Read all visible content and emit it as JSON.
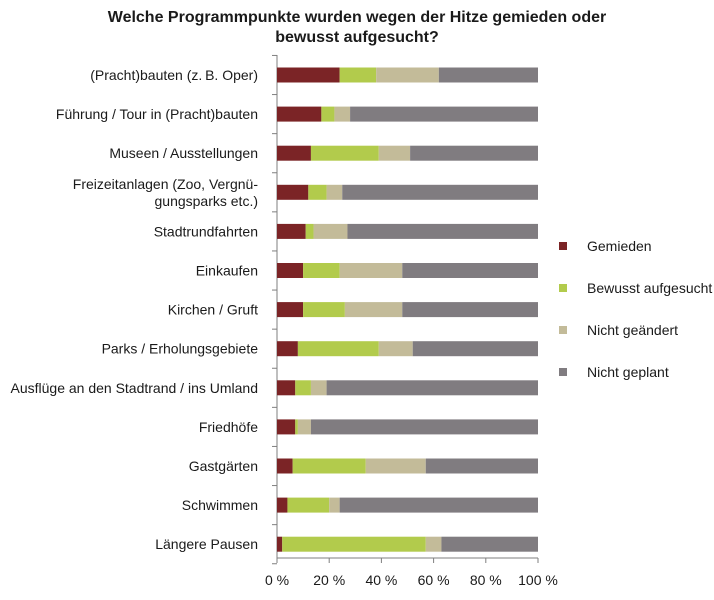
{
  "chart_data": {
    "type": "bar",
    "orientation": "horizontal",
    "stacked": "percent",
    "title_lines": [
      "Welche Programmpunkte wurden wegen der Hitze gemieden oder",
      "bewusst aufgesucht?"
    ],
    "categories": [
      [
        "(Pracht)bauten (z. B. Oper)"
      ],
      [
        "Führung / Tour in (Pracht)bauten"
      ],
      [
        "Museen / Ausstellungen"
      ],
      [
        "Freizeitanlagen (Zoo, Vergnü-",
        "gungsparks etc.)"
      ],
      [
        "Stadtrundfahrten"
      ],
      [
        "Einkaufen"
      ],
      [
        "Kirchen / Gruft"
      ],
      [
        "Parks / Erholungsgebiete"
      ],
      [
        "Ausflüge an den Stadtrand / ins Umland"
      ],
      [
        "Friedhöfe"
      ],
      [
        "Gastgärten"
      ],
      [
        "Schwimmen"
      ],
      [
        "Längere Pausen"
      ]
    ],
    "series": [
      {
        "name": "Gemieden",
        "color": "#7b2426",
        "values": [
          24,
          17,
          13,
          12,
          11,
          10,
          10,
          8,
          7,
          7,
          6,
          4,
          2
        ]
      },
      {
        "name": "Bewusst aufgesucht",
        "color": "#b2cb4c",
        "values": [
          14,
          5,
          26,
          7,
          3,
          14,
          16,
          31,
          6,
          1,
          28,
          16,
          55
        ]
      },
      {
        "name": "Nicht geändert",
        "color": "#c3bb99",
        "values": [
          24,
          6,
          12,
          6,
          13,
          24,
          22,
          13,
          6,
          5,
          23,
          4,
          6
        ]
      },
      {
        "name": "Nicht geplant",
        "color": "#807c80",
        "values": [
          38,
          72,
          49,
          75,
          73,
          52,
          52,
          48,
          81,
          87,
          43,
          76,
          37
        ]
      }
    ],
    "x_ticks": [
      "0 %",
      "20 %",
      "40 %",
      "60 %",
      "80 %",
      "100 %"
    ],
    "xlim": [
      0,
      100
    ],
    "grid": false,
    "legend_position": "right"
  }
}
